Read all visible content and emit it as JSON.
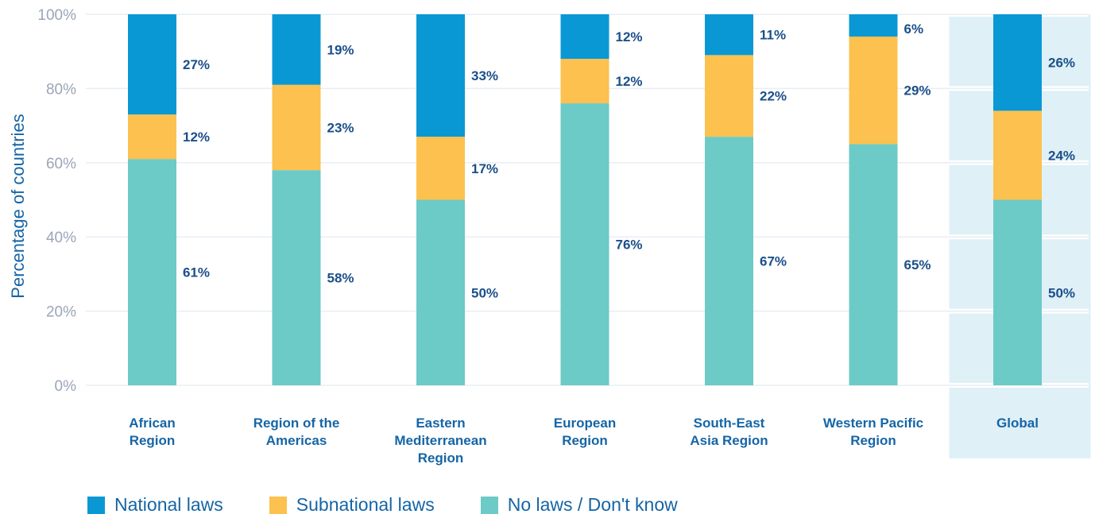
{
  "chart_data": {
    "type": "bar",
    "stacked": true,
    "ylabel": "Percentage of countries",
    "ylim": [
      0,
      100
    ],
    "yticks": [
      "0%",
      "20%",
      "40%",
      "60%",
      "80%",
      "100%"
    ],
    "grid": true,
    "legend_position": "bottom",
    "categories": [
      [
        "African",
        "Region"
      ],
      [
        "Region of the",
        "Americas"
      ],
      [
        "Eastern",
        "Mediterranean",
        "Region"
      ],
      [
        "European",
        "Region"
      ],
      [
        "South-East",
        "Asia Region"
      ],
      [
        "Western Pacific",
        "Region"
      ],
      [
        "Global"
      ]
    ],
    "highlighted_category": "Global",
    "series": [
      {
        "name": "No laws / Don't know",
        "color": "#6ccac7",
        "values": [
          61,
          58,
          50,
          76,
          67,
          65,
          50
        ],
        "labels": [
          "61%",
          "58%",
          "50%",
          "76%",
          "67%",
          "65%",
          "50%"
        ]
      },
      {
        "name": "Subnational laws",
        "color": "#fcc14e",
        "values": [
          12,
          23,
          17,
          12,
          22,
          29,
          24
        ],
        "labels": [
          "12%",
          "23%",
          "17%",
          "12%",
          "22%",
          "29%",
          "24%"
        ]
      },
      {
        "name": "National laws",
        "color": "#0a98d5",
        "values": [
          27,
          19,
          33,
          12,
          11,
          6,
          26
        ],
        "labels": [
          "27%",
          "19%",
          "33%",
          "12%",
          "11%",
          "6%",
          "26%"
        ]
      }
    ],
    "legend": [
      {
        "name": "National laws",
        "color": "#0a98d5"
      },
      {
        "name": "Subnational laws",
        "color": "#fcc14e"
      },
      {
        "name": "No laws / Don't know",
        "color": "#6ccac7"
      }
    ],
    "colors": {
      "highlight_bg": "#dff0f7",
      "grid": "#e8eef4",
      "axis_text": "#9aa5b8",
      "label_text": "#1b4f8a",
      "category_text": "#1565a6"
    }
  }
}
